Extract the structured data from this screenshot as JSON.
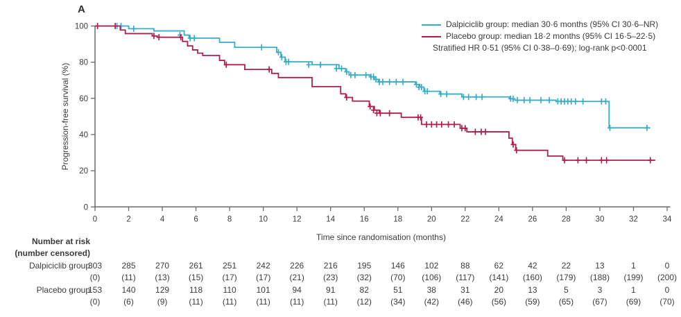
{
  "panel_label": "A",
  "legend": {
    "items": [
      {
        "label": "Dalpiciclib group: median 30·6 months (95% CI 30·6–NR)",
        "color": "#35ADC8"
      },
      {
        "label": "Placebo group: median 18·2 months (95% CI 16·5–22·5)",
        "color": "#B01D52"
      }
    ],
    "note": "Stratified HR 0·51 (95% CI 0·38–0·69); log-rank p<0·0001"
  },
  "chart_data": {
    "type": "line",
    "subtype": "kaplan-meier-step",
    "title": "",
    "xlabel": "Time since randomisation (months)",
    "ylabel": "Progression-free survival (%)",
    "xlim": [
      0,
      34
    ],
    "ylim": [
      0,
      100
    ],
    "xticks": [
      0,
      2,
      4,
      6,
      8,
      10,
      12,
      14,
      16,
      18,
      20,
      22,
      24,
      26,
      28,
      30,
      32,
      34
    ],
    "yticks": [
      0,
      20,
      40,
      60,
      80,
      100
    ],
    "grid": false,
    "legend_position": "top-right",
    "series": [
      {
        "name": "Dalpiciclib group",
        "color": "#35ADC8",
        "median_months": "30·6",
        "ci_95": "30·6–NR",
        "start": [
          0,
          100
        ],
        "steps": [
          [
            2.0,
            98.5
          ],
          [
            3.5,
            97.3
          ],
          [
            5.3,
            95.0
          ],
          [
            5.6,
            93.3
          ],
          [
            7.4,
            91.0
          ],
          [
            8.3,
            88.2
          ],
          [
            10.8,
            85.5
          ],
          [
            11.05,
            82.8
          ],
          [
            11.3,
            80.2
          ],
          [
            12.9,
            78.6
          ],
          [
            14.5,
            76.5
          ],
          [
            14.9,
            74.7
          ],
          [
            15.1,
            72.9
          ],
          [
            16.35,
            71.9
          ],
          [
            16.6,
            70.5
          ],
          [
            16.85,
            69.1
          ],
          [
            19.05,
            67.7
          ],
          [
            19.3,
            66.2
          ],
          [
            19.55,
            63.9
          ],
          [
            20.5,
            62.4
          ],
          [
            21.8,
            60.8
          ],
          [
            24.65,
            59.8
          ],
          [
            24.95,
            59.0
          ],
          [
            27.4,
            58.3
          ],
          [
            30.55,
            43.7
          ]
        ],
        "end_month": 33.0,
        "censors": [
          [
            1.3,
            100
          ],
          [
            1.55,
            100
          ],
          [
            2.3,
            98.5
          ],
          [
            5.05,
            95.0
          ],
          [
            5.65,
            93.3
          ],
          [
            5.9,
            93.3
          ],
          [
            9.9,
            88.2
          ],
          [
            10.9,
            85.5
          ],
          [
            11.1,
            82.8
          ],
          [
            11.35,
            80.2
          ],
          [
            11.5,
            80.2
          ],
          [
            12.7,
            78.6
          ],
          [
            13.4,
            78.6
          ],
          [
            14.35,
            76.5
          ],
          [
            14.65,
            76.5
          ],
          [
            14.95,
            74.7
          ],
          [
            15.2,
            72.9
          ],
          [
            15.45,
            72.9
          ],
          [
            16.1,
            72.9
          ],
          [
            16.4,
            71.9
          ],
          [
            16.55,
            71.9
          ],
          [
            16.7,
            70.5
          ],
          [
            16.9,
            69.1
          ],
          [
            17.1,
            69.1
          ],
          [
            17.5,
            69.1
          ],
          [
            17.9,
            69.1
          ],
          [
            18.3,
            69.1
          ],
          [
            19.1,
            67.7
          ],
          [
            19.25,
            66.2
          ],
          [
            19.4,
            66.2
          ],
          [
            19.6,
            63.9
          ],
          [
            19.75,
            63.9
          ],
          [
            20.55,
            62.4
          ],
          [
            20.9,
            62.4
          ],
          [
            21.9,
            60.8
          ],
          [
            22.2,
            60.8
          ],
          [
            22.65,
            60.8
          ],
          [
            23.0,
            60.8
          ],
          [
            24.7,
            59.8
          ],
          [
            24.85,
            59.8
          ],
          [
            25.1,
            59.0
          ],
          [
            25.5,
            59.0
          ],
          [
            25.85,
            59.0
          ],
          [
            26.5,
            59.0
          ],
          [
            27.0,
            59.0
          ],
          [
            27.5,
            58.3
          ],
          [
            27.7,
            58.3
          ],
          [
            27.9,
            58.3
          ],
          [
            28.1,
            58.3
          ],
          [
            28.3,
            58.3
          ],
          [
            28.55,
            58.3
          ],
          [
            29.0,
            58.3
          ],
          [
            30.1,
            58.3
          ],
          [
            30.35,
            58.3
          ],
          [
            30.6,
            43.7
          ],
          [
            32.8,
            43.7
          ]
        ]
      },
      {
        "name": "Placebo group",
        "color": "#B01D52",
        "median_months": "18·2",
        "ci_95": "16·5–22·5",
        "start": [
          0,
          100
        ],
        "steps": [
          [
            1.5,
            97.8
          ],
          [
            1.8,
            95.8
          ],
          [
            3.4,
            94.5
          ],
          [
            3.7,
            93.8
          ],
          [
            5.2,
            91.5
          ],
          [
            5.5,
            89.0
          ],
          [
            5.8,
            86.8
          ],
          [
            6.1,
            85.0
          ],
          [
            6.4,
            83.7
          ],
          [
            7.4,
            81.0
          ],
          [
            7.7,
            78.6
          ],
          [
            8.9,
            76.0
          ],
          [
            10.5,
            73.8
          ],
          [
            10.9,
            71.5
          ],
          [
            12.9,
            66.5
          ],
          [
            14.6,
            62.5
          ],
          [
            14.9,
            60.5
          ],
          [
            15.3,
            58.5
          ],
          [
            16.3,
            55.5
          ],
          [
            16.6,
            53.5
          ],
          [
            16.9,
            51.8
          ],
          [
            18.2,
            49.5
          ],
          [
            19.4,
            45.6
          ],
          [
            21.7,
            43.5
          ],
          [
            22.1,
            41.5
          ],
          [
            24.6,
            38.0
          ],
          [
            24.8,
            34.5
          ],
          [
            25.0,
            31.3
          ],
          [
            26.9,
            28.1
          ],
          [
            27.8,
            25.8
          ]
        ],
        "end_month": 33.3,
        "censors": [
          [
            0.15,
            100
          ],
          [
            1.2,
            100
          ],
          [
            3.5,
            94.5
          ],
          [
            3.8,
            93.8
          ],
          [
            5.1,
            93.8
          ],
          [
            7.8,
            78.6
          ],
          [
            10.35,
            76.0
          ],
          [
            14.95,
            60.5
          ],
          [
            16.35,
            55.5
          ],
          [
            16.55,
            53.5
          ],
          [
            16.75,
            51.8
          ],
          [
            16.95,
            51.8
          ],
          [
            17.5,
            51.8
          ],
          [
            19.2,
            49.5
          ],
          [
            19.35,
            49.5
          ],
          [
            19.7,
            45.6
          ],
          [
            20.0,
            45.6
          ],
          [
            20.3,
            45.6
          ],
          [
            20.6,
            45.6
          ],
          [
            21.0,
            45.6
          ],
          [
            21.35,
            45.6
          ],
          [
            21.8,
            43.5
          ],
          [
            22.0,
            43.5
          ],
          [
            22.6,
            41.5
          ],
          [
            22.95,
            41.5
          ],
          [
            23.2,
            41.5
          ],
          [
            24.85,
            34.5
          ],
          [
            25.05,
            31.3
          ],
          [
            27.9,
            25.8
          ],
          [
            28.7,
            25.8
          ],
          [
            29.2,
            25.8
          ],
          [
            30.1,
            25.8
          ],
          [
            30.4,
            25.8
          ],
          [
            33.0,
            25.8
          ]
        ]
      }
    ]
  },
  "risk_table": {
    "header_line1": "Number at risk",
    "header_line2": "(number censored)",
    "months": [
      0,
      2,
      4,
      6,
      8,
      10,
      12,
      14,
      16,
      18,
      20,
      22,
      24,
      26,
      28,
      30,
      32,
      34
    ],
    "rows": [
      {
        "label": "Dalpiciclib group",
        "at_risk": [
          303,
          285,
          270,
          261,
          251,
          242,
          226,
          216,
          195,
          146,
          102,
          88,
          62,
          42,
          22,
          13,
          1,
          0
        ],
        "censored": [
          0,
          11,
          13,
          15,
          17,
          17,
          21,
          23,
          32,
          70,
          106,
          117,
          141,
          160,
          179,
          188,
          199,
          200
        ]
      },
      {
        "label": "Placebo group",
        "at_risk": [
          153,
          140,
          129,
          118,
          110,
          101,
          94,
          91,
          82,
          51,
          38,
          31,
          20,
          13,
          5,
          3,
          1,
          0
        ],
        "censored": [
          0,
          6,
          9,
          11,
          11,
          11,
          11,
          11,
          12,
          34,
          42,
          46,
          56,
          59,
          65,
          67,
          69,
          70
        ]
      }
    ]
  },
  "colors": {
    "axis": "#6A6A6A",
    "text": "#3B3B3B",
    "background": "#FFFFFF"
  }
}
